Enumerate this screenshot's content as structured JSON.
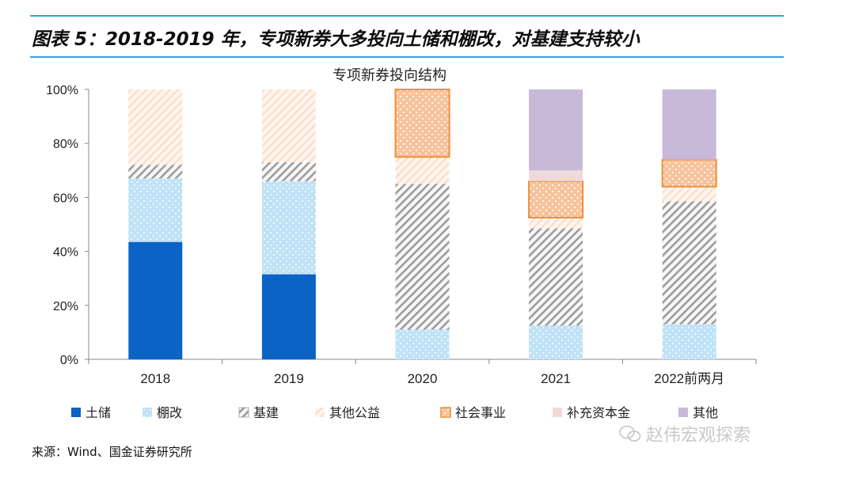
{
  "header": {
    "title": "图表 5：2018-2019 年，专项新券大多投向土储和棚改，对基建支持较小"
  },
  "footer": {
    "source": "来源：Wind、国金证券研究所"
  },
  "watermark": {
    "text": "赵伟宏观探索",
    "icon": "wechat-icon"
  },
  "colors": {
    "rule": "#29a9e0",
    "axis": "#888888"
  },
  "chart_data": {
    "type": "bar",
    "stacked": true,
    "title": "专项新券投向结构",
    "xlabel": "",
    "ylabel": "",
    "ylim": [
      0,
      100
    ],
    "y_ticks": [
      0,
      20,
      40,
      60,
      80,
      100
    ],
    "y_tick_labels": [
      "0%",
      "20%",
      "40%",
      "60%",
      "80%",
      "100%"
    ],
    "categories": [
      "2018",
      "2019",
      "2020",
      "2021",
      "2022前两月"
    ],
    "legend_position": "bottom",
    "series": [
      {
        "name": "土储",
        "key": "land",
        "color": "#0b63c5",
        "pattern": "solid",
        "values": [
          43.5,
          31.5,
          0,
          0,
          0
        ]
      },
      {
        "name": "棚改",
        "key": "shed",
        "color": "#bfe2f7",
        "pattern": "dots",
        "values": [
          23.5,
          34.5,
          11,
          12.5,
          13
        ]
      },
      {
        "name": "基建",
        "key": "infra",
        "color": "#f4f4f4",
        "pattern": "diagonal",
        "values": [
          5,
          7,
          54,
          36,
          45.5
        ]
      },
      {
        "name": "其他公益",
        "key": "welfare",
        "color": "#fde9da",
        "pattern": "light-diagonal",
        "values": [
          28,
          27,
          10,
          4,
          5.5
        ]
      },
      {
        "name": "社会事业",
        "key": "social",
        "color": "#f7c8a0",
        "pattern": "dots-border",
        "values": [
          0,
          0,
          25,
          13.5,
          10
        ]
      },
      {
        "name": "补充资本金",
        "key": "capital",
        "color": "#f0d9db",
        "pattern": "solid",
        "values": [
          0,
          0,
          0,
          4,
          0
        ]
      },
      {
        "name": "其他",
        "key": "other",
        "color": "#c9b9d9",
        "pattern": "solid",
        "values": [
          0,
          0,
          0,
          30,
          26
        ]
      }
    ]
  }
}
